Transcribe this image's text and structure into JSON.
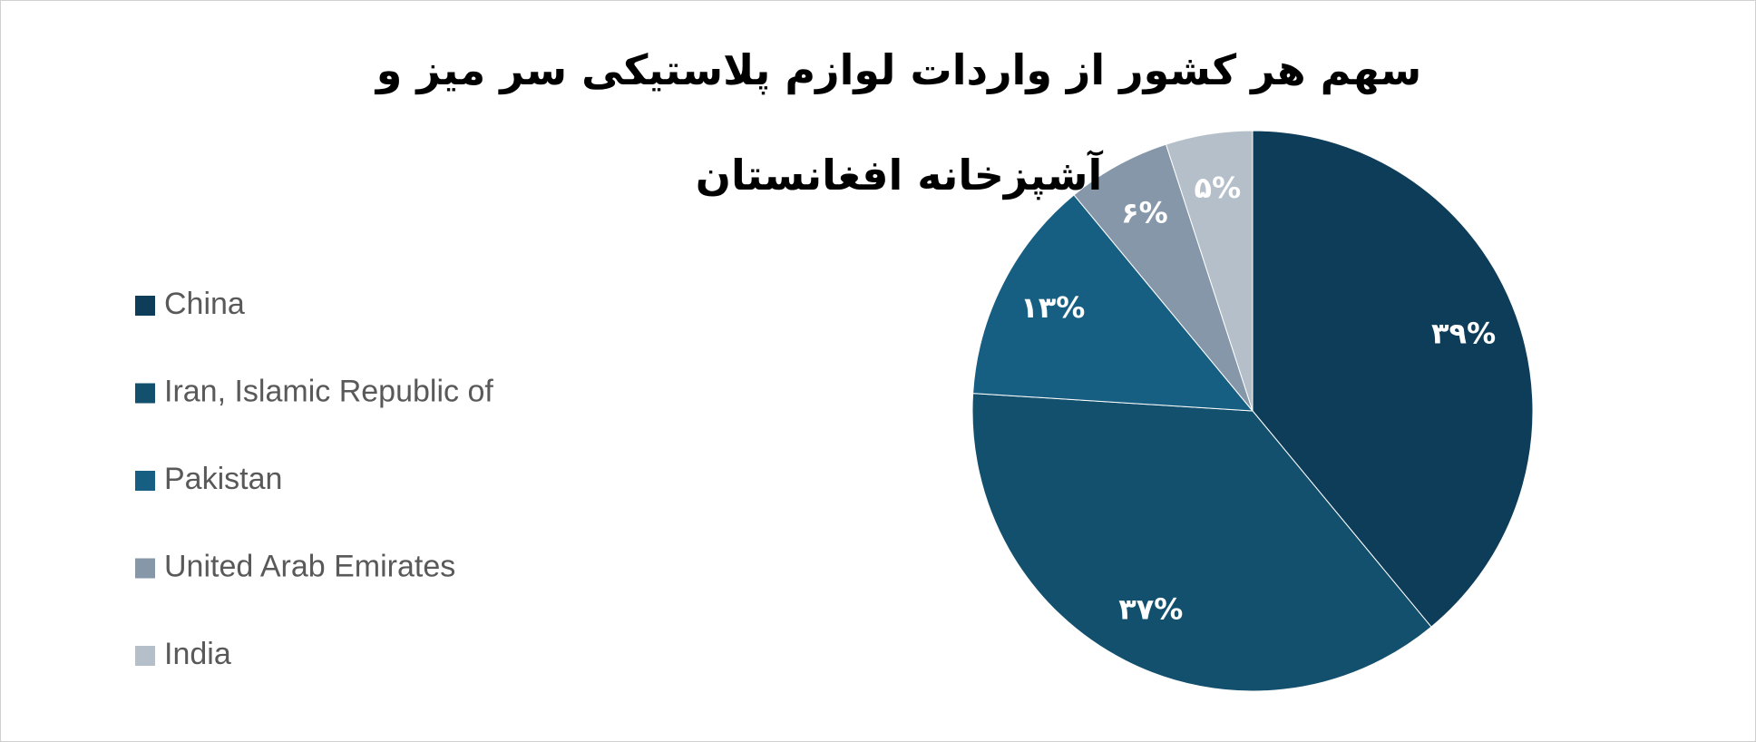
{
  "chart_data": {
    "type": "pie",
    "title": "سهم هر کشور از واردات لوازم پلاستیکی سر میز و آشپزخانه افغانستان",
    "categories": [
      "China",
      "Iran, Islamic Republic of",
      "Pakistan",
      "United Arab Emirates",
      "India"
    ],
    "values": [
      39,
      37,
      13,
      6,
      5
    ],
    "value_labels": [
      "۳۹%",
      "۳۷%",
      "۱۳%",
      "۶%",
      "۵%"
    ],
    "colors": [
      "#0e3d5a",
      "#12506e",
      "#175f82",
      "#8597a8",
      "#b4bfc9"
    ],
    "legend": "left"
  }
}
